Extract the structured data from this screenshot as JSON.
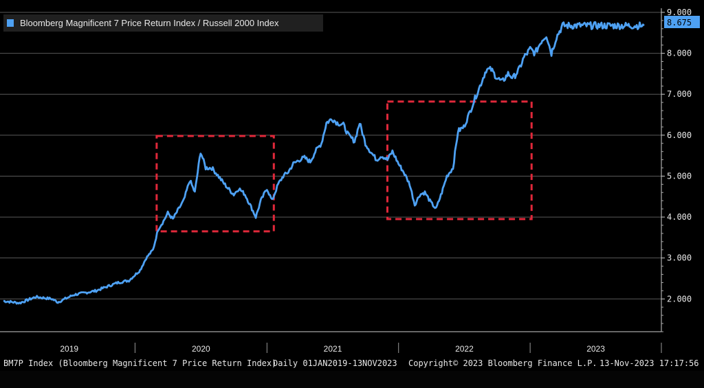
{
  "chart_data": {
    "type": "line",
    "legend": {
      "label": "Bloomberg Magnificent 7 Price Return Index / Russell 2000 Index",
      "color": "#4ea1f3",
      "placement": "top-left"
    },
    "series": [
      {
        "name": "Bloomberg Magnificent 7 Price Return Index / Russell 2000 Index",
        "color": "#4ea1f3",
        "x": [
          "2019-01-01",
          "2019-02-15",
          "2019-04-01",
          "2019-05-15",
          "2019-06-01",
          "2019-07-15",
          "2019-08-15",
          "2019-09-15",
          "2019-10-15",
          "2019-11-15",
          "2019-12-15",
          "2020-01-15",
          "2020-02-01",
          "2020-02-20",
          "2020-03-05",
          "2020-03-20",
          "2020-04-01",
          "2020-04-15",
          "2020-05-01",
          "2020-05-15",
          "2020-06-01",
          "2020-06-15",
          "2020-07-01",
          "2020-07-15",
          "2020-08-01",
          "2020-08-15",
          "2020-09-01",
          "2020-09-15",
          "2020-10-01",
          "2020-10-15",
          "2020-11-01",
          "2020-11-15",
          "2020-12-01",
          "2020-12-15",
          "2021-01-01",
          "2021-01-15",
          "2021-02-01",
          "2021-02-15",
          "2021-03-01",
          "2021-03-15",
          "2021-04-01",
          "2021-04-15",
          "2021-05-01",
          "2021-05-15",
          "2021-06-01",
          "2021-06-15",
          "2021-07-01",
          "2021-07-15",
          "2021-08-01",
          "2021-08-15",
          "2021-09-01",
          "2021-09-15",
          "2021-10-01",
          "2021-10-15",
          "2021-11-01",
          "2021-11-15",
          "2021-12-01",
          "2021-12-15",
          "2022-01-01",
          "2022-01-15",
          "2022-02-01",
          "2022-02-15",
          "2022-03-01",
          "2022-03-15",
          "2022-04-01",
          "2022-04-15",
          "2022-05-01",
          "2022-05-15",
          "2022-06-01",
          "2022-06-15",
          "2022-07-01",
          "2022-07-15",
          "2022-08-01",
          "2022-08-15",
          "2022-09-01",
          "2022-09-15",
          "2022-10-01",
          "2022-10-15",
          "2022-11-01",
          "2022-11-15",
          "2022-12-01",
          "2022-12-15",
          "2023-01-01",
          "2023-01-15",
          "2023-02-01",
          "2023-02-15",
          "2023-03-01",
          "2023-03-15",
          "2023-04-01",
          "2023-04-15",
          "2023-05-01",
          "2023-05-15",
          "2023-06-01",
          "2023-06-15",
          "2023-07-01",
          "2023-07-15",
          "2023-08-01",
          "2023-08-15",
          "2023-09-01",
          "2023-09-15",
          "2023-10-01",
          "2023-10-15",
          "2023-11-01",
          "2023-11-13"
        ],
        "values": [
          1.95,
          1.9,
          2.05,
          2.0,
          1.92,
          2.1,
          2.15,
          2.2,
          2.3,
          2.4,
          2.45,
          2.7,
          3.0,
          3.2,
          3.7,
          3.9,
          4.1,
          3.95,
          4.2,
          4.4,
          4.9,
          4.6,
          5.6,
          5.2,
          5.2,
          5.05,
          4.85,
          4.7,
          4.55,
          4.7,
          4.55,
          4.3,
          4.0,
          4.4,
          4.7,
          4.4,
          4.8,
          5.0,
          5.1,
          5.3,
          5.4,
          5.45,
          5.35,
          5.6,
          5.8,
          6.3,
          6.4,
          6.3,
          6.25,
          6.0,
          5.85,
          6.3,
          5.8,
          5.6,
          5.4,
          5.5,
          5.4,
          5.6,
          5.3,
          5.1,
          4.8,
          4.3,
          4.55,
          4.6,
          4.35,
          4.2,
          4.6,
          5.0,
          5.2,
          6.1,
          6.2,
          6.5,
          6.9,
          7.2,
          7.6,
          7.6,
          7.4,
          7.3,
          7.5,
          7.4,
          7.6,
          7.9,
          8.1,
          8.0,
          8.3,
          8.45,
          8.0,
          8.4,
          8.675,
          8.675,
          8.675,
          8.675,
          8.675,
          8.675,
          8.675,
          8.675,
          8.675,
          8.675,
          8.675,
          8.675,
          8.675,
          8.675,
          8.675,
          8.675
        ]
      }
    ],
    "last_value": "8.675",
    "y_ticks": [
      "2.000",
      "3.000",
      "4.000",
      "5.000",
      "6.000",
      "7.000",
      "8.000",
      "9.000"
    ],
    "ylim": [
      1.2,
      9.1
    ],
    "x_ticks": [
      "2019",
      "2020",
      "2021",
      "2022",
      "2023"
    ],
    "xlim": [
      "2019-01-01",
      "2023-12-31"
    ],
    "grid": true,
    "highlight_boxes": [
      {
        "x_start": "2020-03-01",
        "x_end": "2021-01-20",
        "y_low": 3.65,
        "y_high": 5.98,
        "color": "#e0283a"
      },
      {
        "x_start": "2021-12-01",
        "x_end": "2023-01-05",
        "y_low": 3.95,
        "y_high": 6.82,
        "color": "#e0283a"
      }
    ]
  },
  "footer": {
    "ticker": "BM7P Index (Bloomberg Magnificent 7 Price Return Index)",
    "range": "Daily 01JAN2019-13NOV2023",
    "copyright": "Copyright© 2023 Bloomberg Finance L.P.",
    "timestamp": "13-Nov-2023 17:17:56"
  }
}
